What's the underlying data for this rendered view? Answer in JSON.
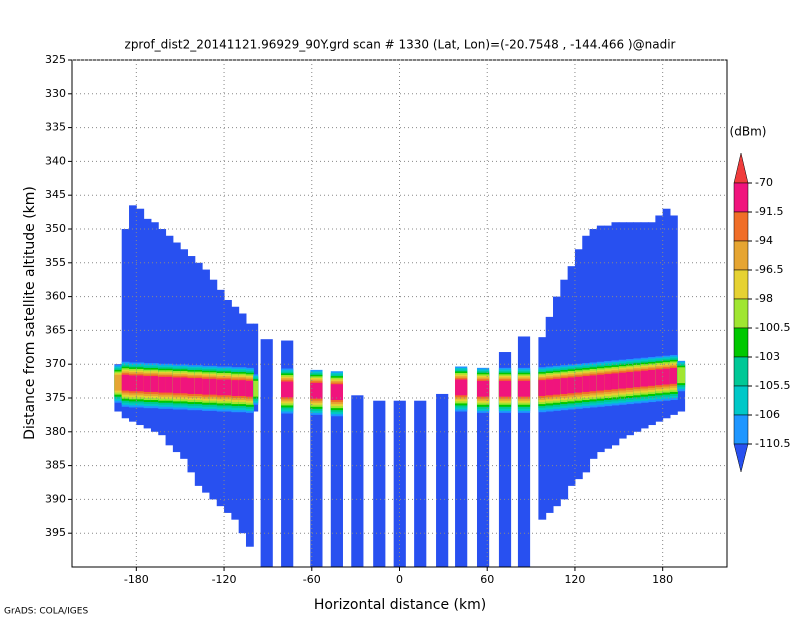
{
  "chart_data": {
    "type": "heatmap",
    "title": "zprof_dist2_20141121.96929_90Y.grd   scan # 1330   (Lat, Lon)=(-20.7548 , -144.466 )@nadir",
    "xlabel": "Horizontal distance (km)",
    "ylabel": "Distance from satellite altitude (km)",
    "xlim": [
      -224,
      224
    ],
    "ylim": [
      325,
      400
    ],
    "xticks": [
      -180,
      -120,
      -60,
      0,
      60,
      120,
      180
    ],
    "yticks": [
      325,
      330,
      335,
      340,
      345,
      350,
      355,
      360,
      365,
      370,
      375,
      380,
      385,
      390,
      395
    ],
    "grid": true,
    "background_value": -112,
    "columns": {
      "x0": [
        -195,
        -190,
        -185,
        -180,
        -175,
        -170,
        -165,
        -160,
        -155,
        -150,
        -145,
        -140,
        -135,
        -130,
        -125,
        -120,
        -115,
        -110,
        -105,
        -100,
        -95,
        -81,
        -61,
        -47,
        -33,
        -18,
        -4,
        10,
        25,
        38,
        53,
        68,
        81,
        95,
        100,
        105,
        110,
        115,
        120,
        125,
        130,
        135,
        140,
        145,
        150,
        155,
        160,
        165,
        170,
        175,
        180,
        185,
        190
      ],
      "x1": [
        -190,
        -185,
        -180,
        -175,
        -170,
        -165,
        -160,
        -155,
        -150,
        -145,
        -140,
        -135,
        -130,
        -125,
        -120,
        -115,
        -110,
        -105,
        -100,
        -97,
        -87,
        -73,
        -53,
        -39,
        -25,
        -10,
        4,
        18,
        33,
        46,
        61,
        76,
        89,
        100,
        105,
        110,
        115,
        120,
        125,
        130,
        135,
        140,
        145,
        150,
        155,
        160,
        165,
        170,
        175,
        180,
        185,
        190,
        195
      ],
      "top": [
        370,
        350,
        346.5,
        347,
        348.5,
        349,
        350,
        351,
        352,
        353,
        354,
        355,
        356,
        357.5,
        359,
        360.5,
        361.5,
        362.5,
        364,
        364,
        366.3,
        366.5,
        371.2,
        372.6,
        374.6,
        375.4,
        375.4,
        375.4,
        374.4,
        372.6,
        371.2,
        368.2,
        365.9,
        366,
        363,
        360,
        357.5,
        355.5,
        353,
        351,
        350,
        349.5,
        349.5,
        349,
        349,
        349,
        349,
        349,
        349,
        348,
        347,
        348,
        370
      ],
      "bottom": [
        377,
        378,
        378.5,
        379,
        379.5,
        380,
        380.5,
        382,
        383,
        384,
        386,
        388,
        389,
        390,
        391,
        392,
        393,
        395,
        397,
        377,
        400,
        400,
        400,
        400,
        400,
        400,
        400,
        400,
        400,
        400,
        400,
        400,
        400,
        393,
        392,
        391,
        390,
        388,
        387,
        386,
        384,
        383,
        382.5,
        382,
        381,
        380.5,
        380,
        379.5,
        379,
        378.5,
        378,
        377.5,
        377
      ]
    },
    "surface": {
      "x0": [
        -195,
        -190,
        -185,
        -180,
        -175,
        -170,
        -165,
        -160,
        -155,
        -150,
        -145,
        -140,
        -135,
        -130,
        -125,
        -120,
        -115,
        -110,
        -105,
        -100,
        -81,
        -61,
        -47,
        38,
        53,
        68,
        81,
        95,
        100,
        105,
        110,
        115,
        120,
        125,
        130,
        135,
        140,
        145,
        150,
        155,
        160,
        165,
        170,
        175,
        180,
        185,
        190
      ],
      "x1": [
        -190,
        -185,
        -180,
        -175,
        -170,
        -165,
        -160,
        -155,
        -150,
        -145,
        -140,
        -135,
        -130,
        -125,
        -120,
        -115,
        -110,
        -105,
        -100,
        -97,
        -73,
        -53,
        -39,
        46,
        61,
        76,
        89,
        100,
        105,
        110,
        115,
        120,
        125,
        130,
        135,
        140,
        145,
        150,
        155,
        160,
        165,
        170,
        175,
        180,
        185,
        190,
        195
      ],
      "center": [
        372.6,
        372.6,
        372.7,
        372.7,
        372.8,
        372.8,
        372.9,
        372.9,
        373,
        373,
        373.1,
        373.1,
        373.2,
        373.2,
        373.3,
        373.3,
        373.4,
        373.4,
        373.5,
        373.5,
        373.6,
        373.8,
        374,
        373.3,
        373.5,
        373.5,
        373.5,
        373.4,
        373.3,
        373.2,
        373.1,
        373,
        372.9,
        372.8,
        372.7,
        372.6,
        372.5,
        372.4,
        372.3,
        372.2,
        372.1,
        372,
        371.9,
        371.8,
        371.7,
        371.6,
        371.5
      ],
      "peak": [
        -96,
        -84,
        -82,
        -82,
        -82,
        -82,
        -82,
        -82,
        -82,
        -82,
        -82,
        -82,
        -82,
        -82,
        -82,
        -82,
        -82,
        -82,
        -84,
        -99,
        -88,
        -88,
        -85,
        -85,
        -85,
        -85,
        -88,
        -84,
        -82,
        -82,
        -82,
        -82,
        -82,
        -82,
        -82,
        -82,
        -82,
        -82,
        -82,
        -82,
        -82,
        -82,
        -82,
        -82,
        -82,
        -86,
        -99
      ]
    },
    "colorbar": {
      "label": "(dBm)",
      "levels": [
        -70,
        -91.5,
        -94,
        -96.5,
        -98,
        -100.5,
        -103,
        -105.5,
        -106,
        -110.5
      ],
      "colors": [
        "#f03c3c",
        "#f0147d",
        "#f06e28",
        "#e6a532",
        "#e6d232",
        "#a0e632",
        "#00c800",
        "#00c896",
        "#00c8c8",
        "#1e96ff",
        "#2850f0"
      ]
    }
  },
  "footer": "GrADS: COLA/IGES"
}
